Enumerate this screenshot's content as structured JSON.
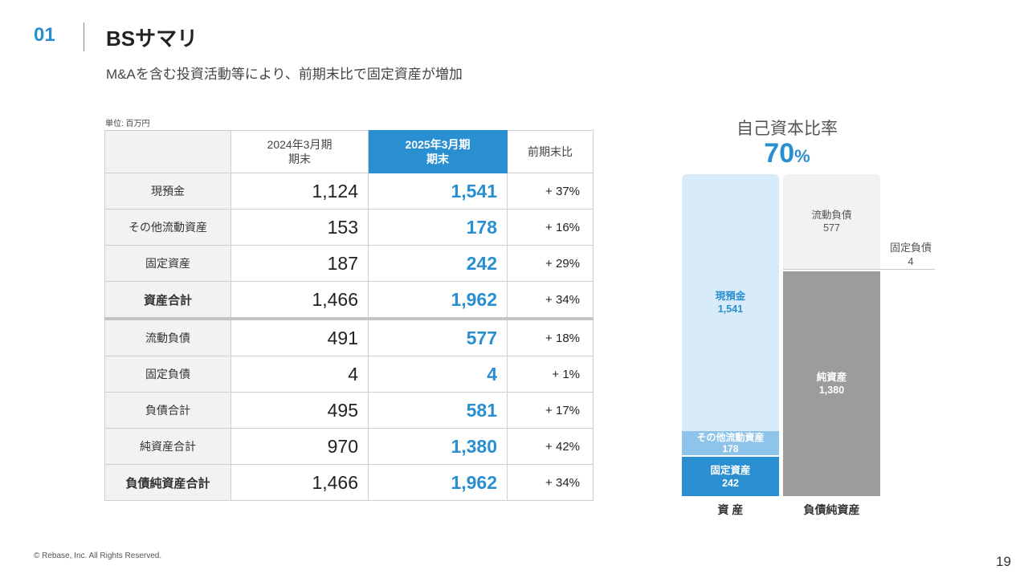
{
  "header": {
    "section_number": "01",
    "title": "BSサマリ",
    "subtitle": "M&Aを含む投資活動等により、前期末比で固定資産が増加"
  },
  "table": {
    "unit": "単位: 百万円",
    "headers": {
      "prev_line1": "2024年3月期",
      "prev_line2": "期末",
      "curr_line1": "2025年3月期",
      "curr_line2": "期末",
      "change": "前期末比"
    },
    "rows": [
      {
        "label": "現預金",
        "prev": "1,124",
        "curr": "1,541",
        "change": "+ 37%"
      },
      {
        "label": "その他流動資産",
        "prev": "153",
        "curr": "178",
        "change": "+ 16%"
      },
      {
        "label": "固定資産",
        "prev": "187",
        "curr": "242",
        "change": "+ 29%"
      },
      {
        "label": "資産合計",
        "prev": "1,466",
        "curr": "1,962",
        "change": "+ 34%"
      },
      {
        "label": "流動負債",
        "prev": "491",
        "curr": "577",
        "change": "+ 18%"
      },
      {
        "label": "固定負債",
        "prev": "4",
        "curr": "4",
        "change": "+ 1%"
      },
      {
        "label": "負債合計",
        "prev": "495",
        "curr": "581",
        "change": "+ 17%"
      },
      {
        "label": "純資産合計",
        "prev": "970",
        "curr": "1,380",
        "change": "+ 42%"
      },
      {
        "label": "負債純資産合計",
        "prev": "1,466",
        "curr": "1,962",
        "change": "+ 34%"
      }
    ]
  },
  "ratio": {
    "title": "自己資本比率",
    "value": "70",
    "unit": "%"
  },
  "chart_data": {
    "type": "bar",
    "stacked": true,
    "categories": [
      "資 産",
      "負債純資産"
    ],
    "series": [
      {
        "name": "現預金",
        "category": "資 産",
        "value": 1541,
        "label": "1,541",
        "color": "#d7ebf8"
      },
      {
        "name": "その他流動資産",
        "category": "資 産",
        "value": 178,
        "label": "178",
        "color": "#8fc4ea"
      },
      {
        "name": "固定資産",
        "category": "資 産",
        "value": 242,
        "label": "242",
        "color": "#2a8fd0"
      },
      {
        "name": "流動負債",
        "category": "負債純資産",
        "value": 577,
        "label": "577",
        "color": "#f2f2f2"
      },
      {
        "name": "固定負債",
        "category": "負債純資産",
        "value": 4,
        "label": "4",
        "color": "#c8c8c8"
      },
      {
        "name": "純資産",
        "category": "負債純資産",
        "value": 1380,
        "label": "1,380",
        "color": "#9c9c9c"
      }
    ]
  },
  "footer": {
    "copyright": "© Rebase, Inc. All Rights Reserved.",
    "page_number": "19"
  },
  "colors": {
    "accent": "#2a8fd0",
    "light_accent": "#d7ebf8",
    "equity_gray": "#9c9c9c"
  }
}
